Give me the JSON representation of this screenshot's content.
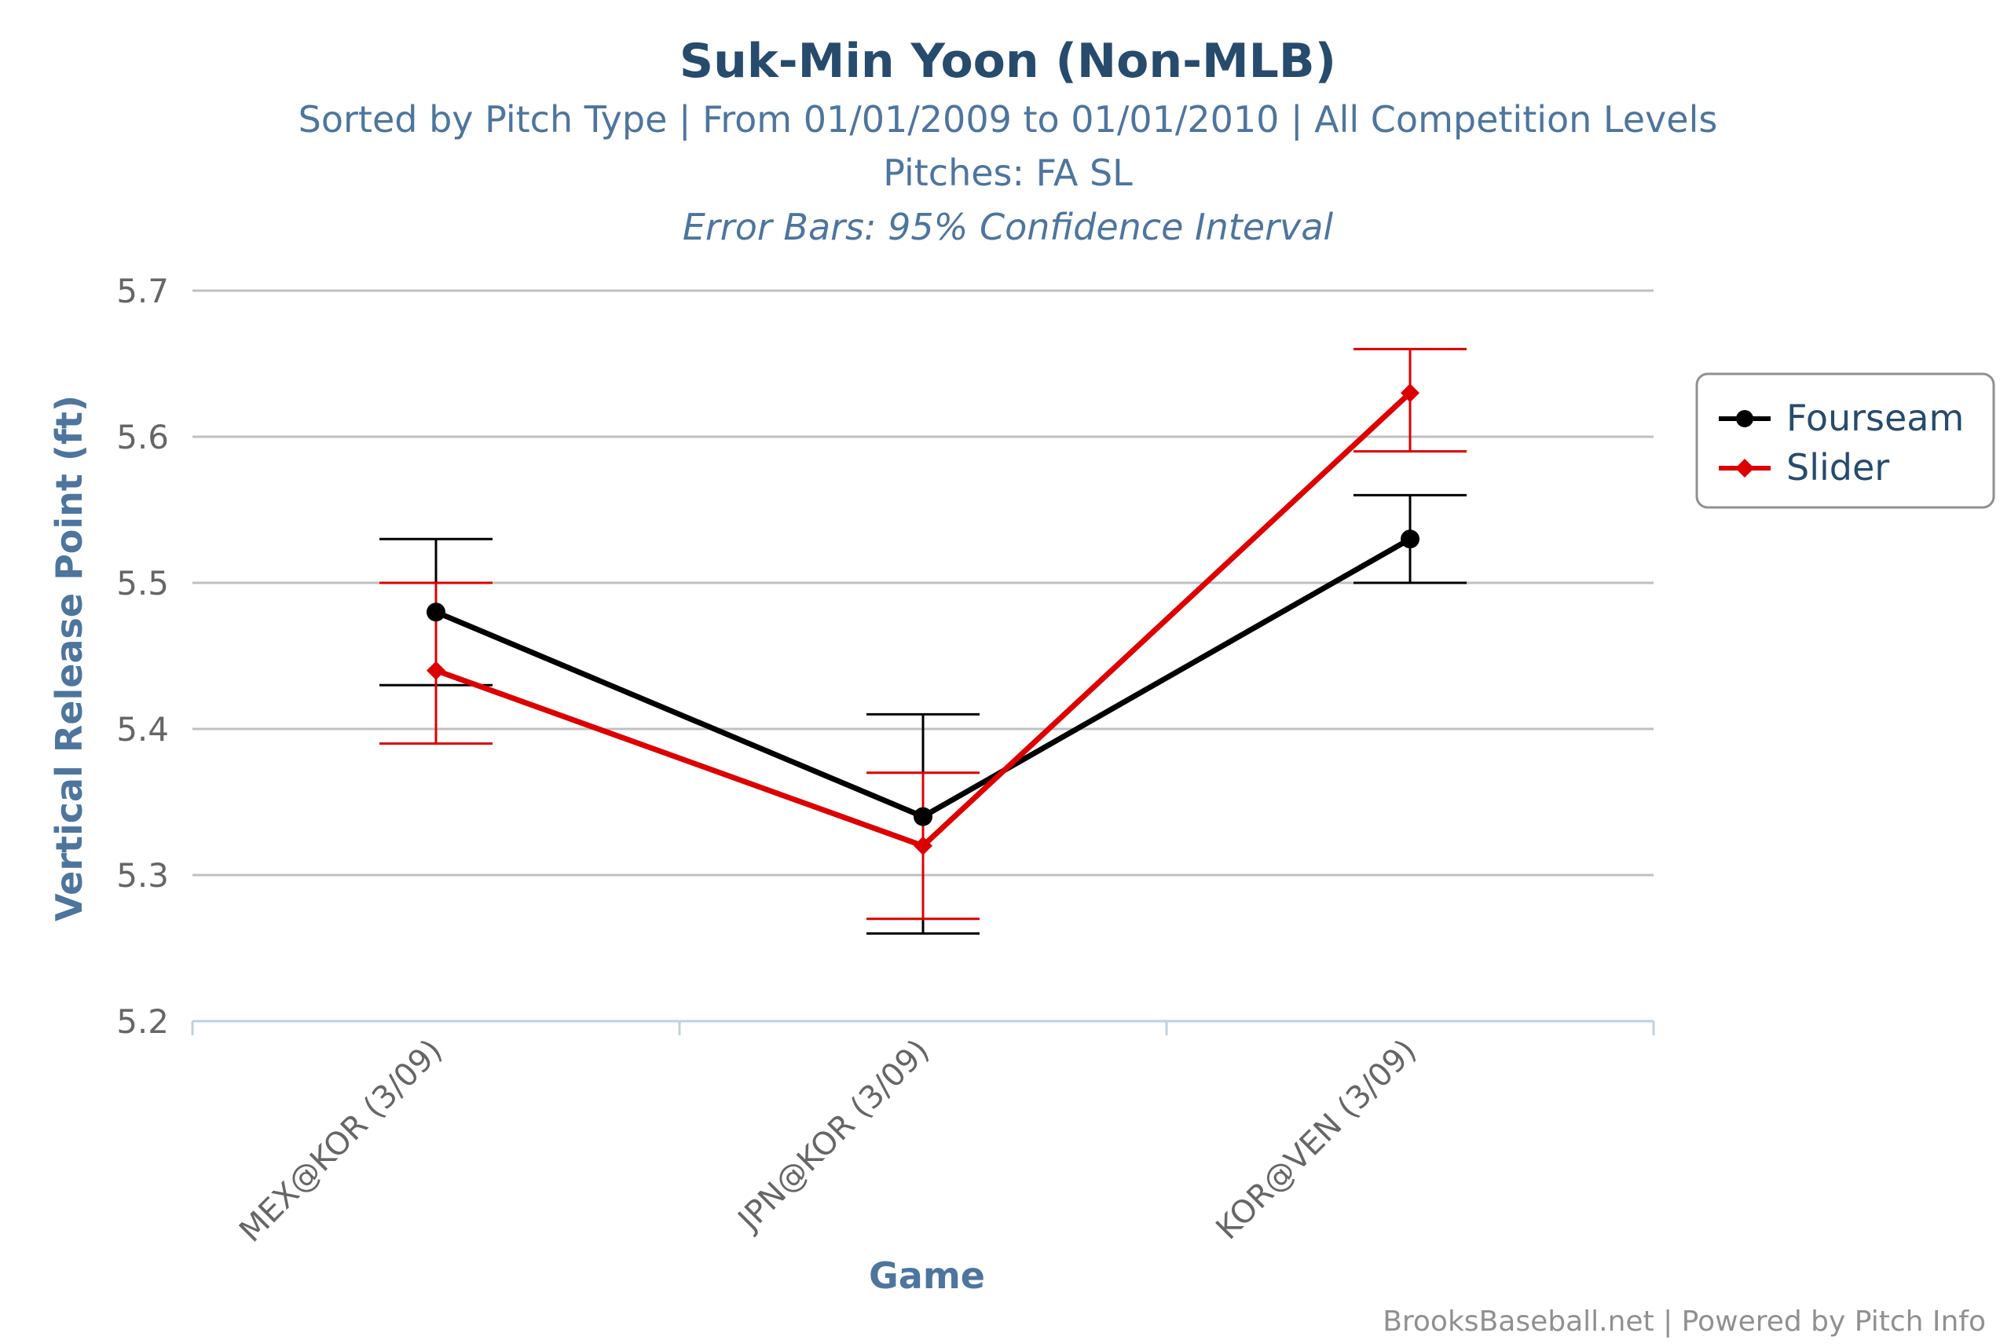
{
  "chart_data": {
    "type": "line",
    "title": "Suk-Min Yoon (Non-MLB)",
    "subtitle": "Sorted by Pitch Type | From 01/01/2009 to 01/01/2010 | All Competition Levels",
    "pitches_line": "Pitches: FA SL",
    "error_bars_note": "Error Bars: 95% Confidence Interval",
    "xlabel": "Game",
    "ylabel": "Vertical Release Point (ft)",
    "categories": [
      "MEX@KOR (3/09)",
      "JPN@KOR (3/09)",
      "KOR@VEN (3/09)"
    ],
    "ylim": [
      5.2,
      5.7
    ],
    "yticks": [
      "5.2",
      "5.3",
      "5.4",
      "5.5",
      "5.6",
      "5.7"
    ],
    "grid": true,
    "legend_position": "right",
    "series": [
      {
        "name": "Fourseam",
        "color": "#000000",
        "marker": "circle",
        "values": [
          5.48,
          5.34,
          5.53
        ],
        "error_low": [
          5.43,
          5.26,
          5.5
        ],
        "error_high": [
          5.53,
          5.41,
          5.56
        ]
      },
      {
        "name": "Slider",
        "color": "#dd0000",
        "marker": "diamond",
        "values": [
          5.44,
          5.32,
          5.63
        ],
        "error_low": [
          5.39,
          5.27,
          5.59
        ],
        "error_high": [
          5.5,
          5.37,
          5.66
        ]
      }
    ],
    "credits": "BrooksBaseball.net | Powered by Pitch Info"
  },
  "colors": {
    "title": "#274b6d",
    "subtitle": "#4d759e",
    "axis_label": "#4d759e",
    "tick_label": "#666666",
    "grid": "#c0c0c0",
    "axis_line": "#c0d0e0",
    "credits": "#909090"
  }
}
